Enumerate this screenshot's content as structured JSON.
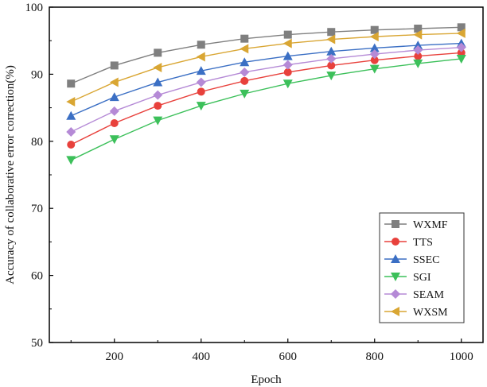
{
  "chart_data": {
    "type": "line",
    "xlabel": "Epoch",
    "ylabel": "Accuracy of collaborative error correction(%)",
    "xlim": [
      50,
      1050
    ],
    "ylim": [
      50,
      100
    ],
    "xticks": [
      200,
      400,
      600,
      800,
      1000
    ],
    "yticks": [
      50,
      60,
      70,
      80,
      90,
      100
    ],
    "x": [
      100,
      200,
      300,
      400,
      500,
      600,
      700,
      800,
      900,
      1000
    ],
    "legend_position": "bottom-right",
    "grid": false,
    "series": [
      {
        "name": "WXMF",
        "color": "#7f7f7f",
        "marker": "square",
        "values": [
          88.6,
          91.3,
          93.2,
          94.4,
          95.3,
          95.9,
          96.3,
          96.6,
          96.8,
          97.0
        ]
      },
      {
        "name": "TTS",
        "color": "#e8413c",
        "marker": "circle",
        "values": [
          79.5,
          82.7,
          85.3,
          87.4,
          89.0,
          90.3,
          91.3,
          92.1,
          92.7,
          93.2
        ]
      },
      {
        "name": "SSEC",
        "color": "#3b6fc4",
        "marker": "triangle-up",
        "values": [
          83.8,
          86.6,
          88.8,
          90.5,
          91.8,
          92.7,
          93.4,
          93.9,
          94.3,
          94.6
        ]
      },
      {
        "name": "SGI",
        "color": "#3cc05a",
        "marker": "triangle-down",
        "values": [
          77.2,
          80.3,
          83.1,
          85.3,
          87.1,
          88.6,
          89.8,
          90.8,
          91.6,
          92.3
        ]
      },
      {
        "name": "SEAM",
        "color": "#b58ad6",
        "marker": "diamond",
        "values": [
          81.4,
          84.5,
          86.9,
          88.8,
          90.3,
          91.4,
          92.3,
          93.0,
          93.6,
          94.0
        ]
      },
      {
        "name": "WXSM",
        "color": "#d9a633",
        "marker": "triangle-left",
        "values": [
          85.9,
          88.8,
          91.0,
          92.6,
          93.8,
          94.6,
          95.2,
          95.6,
          95.9,
          96.1
        ]
      }
    ]
  }
}
